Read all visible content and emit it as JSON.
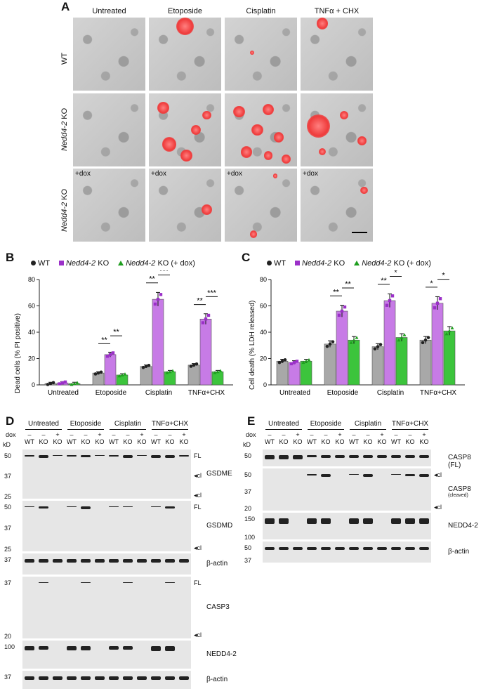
{
  "panels": {
    "A": "A",
    "B": "B",
    "C": "C",
    "D": "D",
    "E": "E"
  },
  "micro": {
    "columns": [
      "Untreated",
      "Etoposide",
      "Cisplatin",
      "TNFα + CHX"
    ],
    "rows": [
      {
        "label": "WT",
        "italic": "",
        "dox": ""
      },
      {
        "label": " KO",
        "italic": "Nedd4-2",
        "dox": ""
      },
      {
        "label": " KO",
        "italic": "Nedd4-2",
        "dox": "+dox"
      }
    ]
  },
  "legend": {
    "wt": "WT",
    "ko_italic": "Nedd4-2",
    "ko": " KO",
    "dox": " KO (+ dox)",
    "dox_b": " KO (+ dox)"
  },
  "colors": {
    "wt": "#222222",
    "ko": "#9b30c8",
    "dox": "#1f9e1f",
    "bar_wt": "#a8a8a8",
    "bar_ko": "#c77be6",
    "bar_dox": "#3cc43c",
    "pi": "#ef3b3b"
  },
  "chart_data": [
    {
      "type": "bar",
      "ylabel": "Dead cells (% PI positive)",
      "ylim": [
        0,
        80
      ],
      "yticks": [
        0,
        20,
        40,
        60,
        80
      ],
      "categories": [
        "Untreated",
        "Etoposide",
        "Cisplatin",
        "TNFα+CHX"
      ],
      "series": [
        {
          "name": "WT",
          "values": [
            1,
            9,
            14,
            15
          ]
        },
        {
          "name": "Nedd4-2 KO",
          "values": [
            1.5,
            23,
            65,
            50
          ]
        },
        {
          "name": "Nedd4-2 KO (+ dox)",
          "values": [
            1,
            7.5,
            10,
            10
          ]
        }
      ],
      "significance": [
        {
          "group": 1,
          "pair": "WT-KO",
          "label": "**"
        },
        {
          "group": 1,
          "pair": "KO-dox",
          "label": "**"
        },
        {
          "group": 2,
          "pair": "WT-KO",
          "label": "**"
        },
        {
          "group": 2,
          "pair": "KO-dox",
          "label": "***"
        },
        {
          "group": 3,
          "pair": "WT-KO",
          "label": "**"
        },
        {
          "group": 3,
          "pair": "KO-dox",
          "label": "***"
        }
      ]
    },
    {
      "type": "bar",
      "ylabel": "Cell death (% LDH released)",
      "ylim": [
        0,
        80
      ],
      "yticks": [
        0,
        20,
        40,
        60,
        80
      ],
      "categories": [
        "Untreated",
        "Etoposide",
        "Cisplatin",
        "TNFα+CHX"
      ],
      "series": [
        {
          "name": "WT",
          "values": [
            18,
            31,
            29,
            34
          ]
        },
        {
          "name": "Nedd4-2 KO",
          "values": [
            17,
            56,
            64,
            62
          ]
        },
        {
          "name": "Nedd4-2 KO (+ dox)",
          "values": [
            18,
            34,
            36,
            41
          ]
        }
      ],
      "significance": [
        {
          "group": 1,
          "pair": "WT-KO",
          "label": "**"
        },
        {
          "group": 1,
          "pair": "KO-dox",
          "label": "**"
        },
        {
          "group": 2,
          "pair": "WT-KO",
          "label": "**"
        },
        {
          "group": 2,
          "pair": "KO-dox",
          "label": "*"
        },
        {
          "group": 3,
          "pair": "WT-KO",
          "label": "*"
        },
        {
          "group": 3,
          "pair": "KO-dox",
          "label": "*"
        }
      ]
    }
  ],
  "blotD": {
    "groups": [
      "Untreated",
      "Etoposide",
      "Cisplatin",
      "TNFα+CHX"
    ],
    "dox_label": "dox",
    "dox_row": [
      "–",
      "–",
      "+",
      "–",
      "–",
      "+",
      "–",
      "–",
      "+",
      "–",
      "–",
      "+"
    ],
    "lanes": [
      "WT",
      "KO",
      "KO",
      "WT",
      "KO",
      "KO",
      "WT",
      "KO",
      "KO",
      "WT",
      "KO",
      "KO"
    ],
    "kd": "kD",
    "strips": [
      {
        "name": "GSDME",
        "marks": [
          "50",
          "37",
          "25"
        ],
        "tags": [
          "FL",
          "◂cl",
          "◂cl"
        ]
      },
      {
        "name": "GSDMD",
        "marks": [
          "50",
          "37",
          "25"
        ],
        "tags": [
          "FL",
          "◂cl"
        ]
      },
      {
        "name": "β-actin",
        "marks": [
          "37"
        ],
        "tags": []
      },
      {
        "name": "CASP3",
        "marks": [
          "37",
          "20"
        ],
        "tags": [
          "FL",
          "◂cl"
        ]
      },
      {
        "name": "NEDD4-2",
        "marks": [
          "100"
        ],
        "tags": []
      },
      {
        "name": "β-actin",
        "marks": [
          "37"
        ],
        "tags": []
      }
    ]
  },
  "blotE": {
    "groups": [
      "Untreated",
      "Etoposide",
      "Cisplatin",
      "TNFα+CHX"
    ],
    "dox_label": "dox",
    "dox_row": [
      "–",
      "–",
      "+",
      "–",
      "–",
      "+",
      "–",
      "–",
      "+",
      "–",
      "–",
      "+"
    ],
    "lanes": [
      "WT",
      "KO",
      "KO",
      "WT",
      "KO",
      "KO",
      "WT",
      "KO",
      "KO",
      "WT",
      "KO",
      "KO"
    ],
    "kd": "kD",
    "strips": [
      {
        "name": "CASP8 (FL)",
        "marks": [
          "50"
        ],
        "tags": []
      },
      {
        "name": "CASP8",
        "sub": "(cleaved)",
        "marks": [
          "50",
          "37",
          "20"
        ],
        "tags": [
          "◂cl",
          "◂cl"
        ]
      },
      {
        "name": "NEDD4-2",
        "marks": [
          "150",
          "100"
        ],
        "tags": []
      },
      {
        "name": "β-actin",
        "marks": [
          "50",
          "37"
        ],
        "tags": []
      }
    ]
  }
}
